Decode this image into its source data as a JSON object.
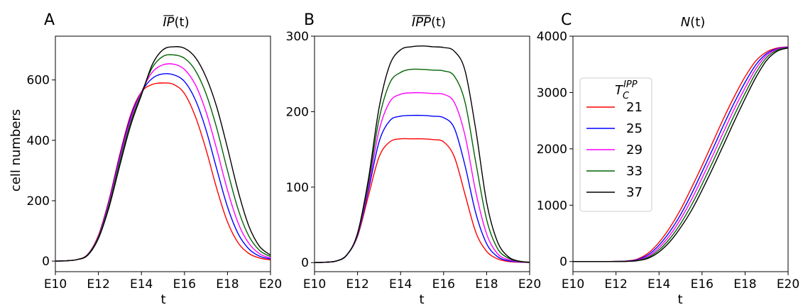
{
  "colors": {
    "21": "#ff0000",
    "25": "#0000ff",
    "29": "#ff00ff",
    "33": "#006400",
    "37": "#000000"
  },
  "legend": {
    "title_main": "T",
    "title_sub": "C",
    "title_sup": "IPP",
    "entries": [
      "21",
      "25",
      "29",
      "33",
      "37"
    ]
  },
  "chart_data": [
    {
      "type": "line",
      "panel": "A",
      "title_main": "IP",
      "title_arg": "(t)",
      "overline": true,
      "xlabel": "t",
      "ylabel": "cell numbers",
      "xlim": [
        10,
        20
      ],
      "ylim": [
        -35,
        745
      ],
      "xticks": [
        10,
        12,
        14,
        16,
        18,
        20
      ],
      "xtick_labels": [
        "E10",
        "E12",
        "E14",
        "E16",
        "E18",
        "E20"
      ],
      "yticks": [
        0,
        200,
        400,
        600
      ],
      "ytick_labels": [
        "0",
        "200",
        "400",
        "600"
      ],
      "x": [
        10,
        10.5,
        11,
        11.5,
        12,
        12.5,
        13,
        13.5,
        14,
        14.5,
        15,
        15.5,
        16,
        16.5,
        17,
        17.5,
        18,
        18.5,
        19,
        19.5,
        20
      ],
      "series": [
        {
          "name": "21",
          "values": [
            0,
            1,
            5,
            22,
            85,
            205,
            355,
            485,
            560,
            585,
            590,
            585,
            555,
            480,
            370,
            240,
            130,
            60,
            25,
            10,
            4
          ]
        },
        {
          "name": "25",
          "values": [
            0,
            1,
            5,
            21,
            82,
            200,
            348,
            478,
            560,
            605,
            620,
            617,
            595,
            535,
            435,
            305,
            180,
            90,
            40,
            16,
            7
          ]
        },
        {
          "name": "29",
          "values": [
            0,
            1,
            5,
            20,
            80,
            195,
            340,
            470,
            560,
            625,
            650,
            652,
            635,
            585,
            495,
            370,
            235,
            125,
            58,
            24,
            10
          ]
        },
        {
          "name": "33",
          "values": [
            0,
            1,
            5,
            20,
            78,
            188,
            330,
            460,
            555,
            640,
            678,
            683,
            672,
            632,
            555,
            440,
            300,
            170,
            82,
            35,
            15
          ]
        },
        {
          "name": "37",
          "values": [
            0,
            1,
            5,
            19,
            75,
            180,
            318,
            450,
            550,
            650,
            700,
            710,
            705,
            675,
            610,
            510,
            375,
            230,
            115,
            48,
            20
          ]
        }
      ]
    },
    {
      "type": "line",
      "panel": "B",
      "title_main": "IPP",
      "title_arg": "(t)",
      "overline": true,
      "xlabel": "t",
      "ylabel": "",
      "xlim": [
        10,
        20
      ],
      "ylim": [
        -12,
        300
      ],
      "xticks": [
        10,
        12,
        14,
        16,
        18,
        20
      ],
      "xtick_labels": [
        "E10",
        "E12",
        "E14",
        "E16",
        "E18",
        "E20"
      ],
      "yticks": [
        0,
        100,
        200,
        300
      ],
      "ytick_labels": [
        "0",
        "100",
        "200",
        "300"
      ],
      "x": [
        10,
        10.5,
        11,
        11.5,
        12,
        12.5,
        13,
        13.5,
        14,
        14.5,
        15,
        15.5,
        16,
        16.5,
        17,
        17.5,
        18,
        18.5,
        19,
        19.5,
        20
      ],
      "series": [
        {
          "name": "21",
          "values": [
            0,
            0.5,
            2,
            10,
            35,
            88,
            140,
            160,
            164,
            164,
            164,
            163,
            160,
            140,
            90,
            40,
            15,
            5,
            1.5,
            0.5,
            0.1
          ]
        },
        {
          "name": "25",
          "values": [
            0,
            0.5,
            2,
            10,
            36,
            95,
            160,
            188,
            194,
            195,
            195,
            194,
            192,
            178,
            128,
            65,
            25,
            8,
            2.5,
            0.8,
            0.2
          ]
        },
        {
          "name": "29",
          "values": [
            0,
            0.5,
            2,
            10,
            37,
            100,
            175,
            213,
            223,
            225,
            225,
            224,
            223,
            212,
            168,
            93,
            38,
            12,
            4,
            1,
            0.3
          ]
        },
        {
          "name": "33",
          "values": [
            0,
            0.5,
            2,
            10,
            38,
            105,
            190,
            238,
            252,
            256,
            256,
            255,
            254,
            247,
            212,
            132,
            57,
            19,
            6,
            1.5,
            0.4
          ]
        },
        {
          "name": "37",
          "values": [
            0,
            0.5,
            2,
            10,
            39,
            110,
            205,
            262,
            282,
            286,
            287,
            286,
            285,
            280,
            254,
            175,
            80,
            28,
            8,
            2,
            0.5
          ]
        }
      ]
    },
    {
      "type": "line",
      "panel": "C",
      "title_main": "N",
      "title_arg": "(t)",
      "overline": false,
      "xlabel": "t",
      "ylabel": "",
      "xlim": [
        10,
        20
      ],
      "ylim": [
        -180,
        4000
      ],
      "xticks": [
        10,
        12,
        14,
        16,
        18,
        20
      ],
      "xtick_labels": [
        "E10",
        "E12",
        "E14",
        "E16",
        "E18",
        "E20"
      ],
      "yticks": [
        0,
        1000,
        2000,
        3000,
        4000
      ],
      "ytick_labels": [
        "0",
        "1000",
        "2000",
        "3000",
        "4000"
      ],
      "x": [
        10,
        10.5,
        11,
        11.5,
        12,
        12.5,
        13,
        13.5,
        14,
        14.5,
        15,
        15.5,
        16,
        16.5,
        17,
        17.5,
        18,
        18.5,
        19,
        19.5,
        20
      ],
      "series": [
        {
          "name": "21",
          "values": [
            0,
            0,
            0,
            0,
            2,
            10,
            45,
            150,
            340,
            600,
            920,
            1300,
            1700,
            2120,
            2540,
            2930,
            3280,
            3560,
            3720,
            3790,
            3810
          ]
        },
        {
          "name": "25",
          "values": [
            0,
            0,
            0,
            0,
            1,
            7,
            35,
            120,
            290,
            530,
            830,
            1190,
            1590,
            2000,
            2420,
            2820,
            3180,
            3490,
            3690,
            3780,
            3805
          ]
        },
        {
          "name": "29",
          "values": [
            0,
            0,
            0,
            0,
            1,
            5,
            27,
            95,
            245,
            465,
            750,
            1090,
            1480,
            1885,
            2300,
            2710,
            3080,
            3420,
            3660,
            3770,
            3800
          ]
        },
        {
          "name": "33",
          "values": [
            0,
            0,
            0,
            0,
            1,
            4,
            20,
            75,
            205,
            405,
            670,
            995,
            1370,
            1770,
            2185,
            2600,
            2985,
            3345,
            3620,
            3755,
            3795
          ]
        },
        {
          "name": "37",
          "values": [
            0,
            0,
            0,
            0,
            0,
            3,
            15,
            58,
            170,
            350,
            600,
            900,
            1265,
            1660,
            2070,
            2490,
            2890,
            3265,
            3570,
            3735,
            3790
          ]
        }
      ]
    }
  ]
}
